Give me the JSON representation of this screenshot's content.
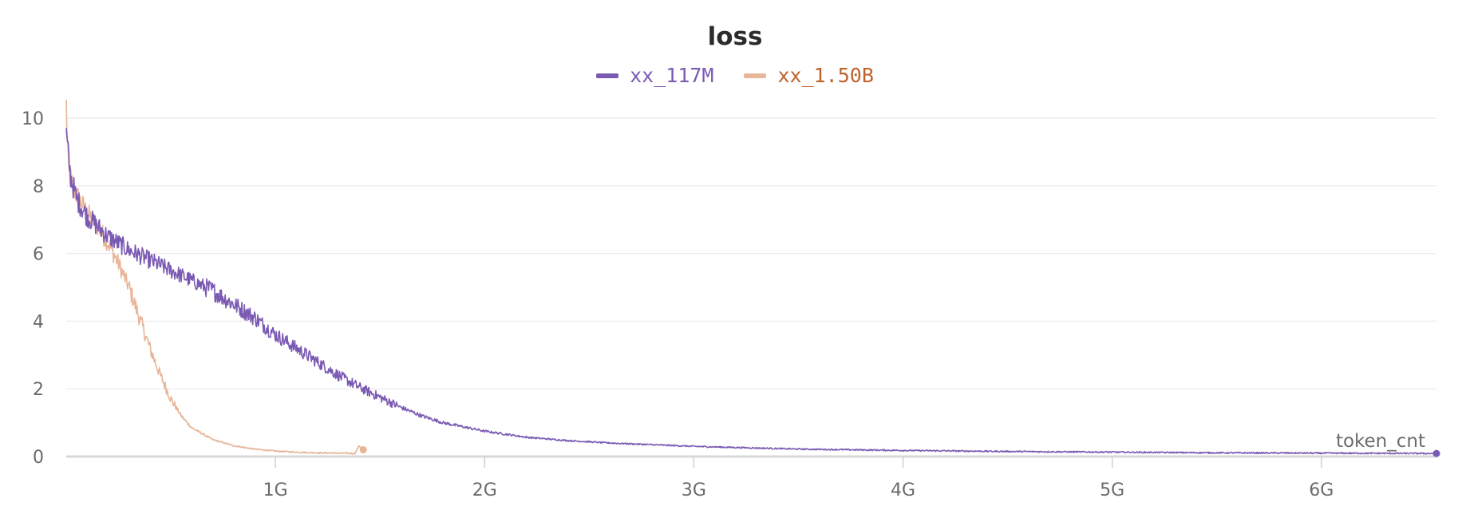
{
  "chart_data": {
    "type": "line",
    "title": "loss",
    "xlabel": "token_cnt",
    "ylabel": "",
    "xlim": [
      0,
      6.55
    ],
    "ylim": [
      0,
      10.5
    ],
    "x_unit": "G tokens",
    "xticks": [
      {
        "value": 1,
        "label": "1G"
      },
      {
        "value": 2,
        "label": "2G"
      },
      {
        "value": 3,
        "label": "3G"
      },
      {
        "value": 4,
        "label": "4G"
      },
      {
        "value": 5,
        "label": "5G"
      },
      {
        "value": 6,
        "label": "6G"
      }
    ],
    "yticks": [
      {
        "value": 0,
        "label": "0"
      },
      {
        "value": 2,
        "label": "2"
      },
      {
        "value": 4,
        "label": "4"
      },
      {
        "value": 6,
        "label": "6"
      },
      {
        "value": 8,
        "label": "8"
      },
      {
        "value": 10,
        "label": "10"
      }
    ],
    "grid": true,
    "legend_position": "top-center",
    "series": [
      {
        "name": "xx_117M",
        "color": "#7b5ab3",
        "noisy": true,
        "x": [
          0,
          0.02,
          0.05,
          0.1,
          0.2,
          0.3,
          0.4,
          0.5,
          0.6,
          0.7,
          0.8,
          0.9,
          1.0,
          1.1,
          1.2,
          1.3,
          1.4,
          1.5,
          1.6,
          1.7,
          1.8,
          2.0,
          2.2,
          2.4,
          2.6,
          3.0,
          3.5,
          4.0,
          4.5,
          5.0,
          5.5,
          6.0,
          6.55
        ],
        "y": [
          9.5,
          8.3,
          7.6,
          7.1,
          6.5,
          6.1,
          5.8,
          5.5,
          5.2,
          4.9,
          4.5,
          4.1,
          3.6,
          3.2,
          2.8,
          2.4,
          2.05,
          1.75,
          1.45,
          1.2,
          1.0,
          0.75,
          0.57,
          0.47,
          0.4,
          0.3,
          0.22,
          0.18,
          0.15,
          0.13,
          0.11,
          0.1,
          0.09
        ]
      },
      {
        "name": "xx_1.50B",
        "color": "#e7b597",
        "legend_text_color": "#c0622e",
        "noisy": true,
        "x": [
          0,
          0.01,
          0.03,
          0.06,
          0.1,
          0.15,
          0.2,
          0.25,
          0.3,
          0.35,
          0.4,
          0.45,
          0.5,
          0.55,
          0.6,
          0.7,
          0.8,
          0.9,
          1.0,
          1.1,
          1.2,
          1.3,
          1.38,
          1.4,
          1.42
        ],
        "y": [
          10.4,
          8.5,
          8.0,
          7.6,
          7.2,
          6.8,
          6.3,
          5.7,
          5.0,
          4.1,
          3.2,
          2.4,
          1.7,
          1.2,
          0.85,
          0.5,
          0.32,
          0.22,
          0.16,
          0.13,
          0.11,
          0.1,
          0.09,
          0.32,
          0.2
        ]
      }
    ]
  }
}
